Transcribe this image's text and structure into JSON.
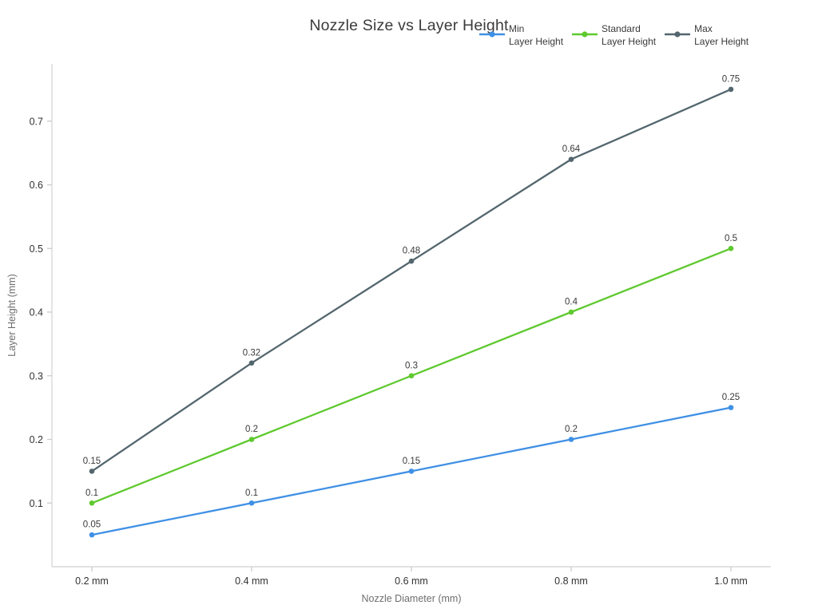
{
  "chart_data": {
    "type": "line",
    "title": "Nozzle Size vs Layer Height",
    "xlabel": "Nozzle Diameter (mm)",
    "ylabel": "Layer Height (mm)",
    "x": [
      0.2,
      0.4,
      0.6,
      0.8,
      1.0
    ],
    "x_tick_labels": [
      "0.2 mm",
      "0.4 mm",
      "0.6 mm",
      "0.8 mm",
      "1.0 mm"
    ],
    "y_ticks": [
      0.1,
      0.2,
      0.3,
      0.4,
      0.5,
      0.6,
      0.7
    ],
    "y_tick_labels": [
      "0.1",
      "0.2",
      "0.3",
      "0.4",
      "0.5",
      "0.6",
      "0.7"
    ],
    "xlim": [
      0.15,
      1.05
    ],
    "ylim": [
      0,
      0.79
    ],
    "grid": false,
    "legend_position": "top-right",
    "point_labels_shown": true,
    "series": [
      {
        "name": "Min Layer Height",
        "legend_lines": [
          "Min",
          "Layer Height"
        ],
        "color": "#3f90e5",
        "values": [
          0.05,
          0.1,
          0.15,
          0.2,
          0.25
        ],
        "point_labels": [
          "0.05",
          "0.1",
          "0.15",
          "0.2",
          "0.25"
        ]
      },
      {
        "name": "Standard Layer Height",
        "legend_lines": [
          "Standard",
          "Layer Height"
        ],
        "color": "#5fc92f",
        "values": [
          0.1,
          0.2,
          0.3,
          0.4,
          0.5
        ],
        "point_labels": [
          "0.1",
          "0.2",
          "0.3",
          "0.4",
          "0.5"
        ]
      },
      {
        "name": "Max Layer Height",
        "legend_lines": [
          "Max",
          "Layer Height"
        ],
        "color": "#53666e",
        "values": [
          0.15,
          0.32,
          0.48,
          0.64,
          0.75
        ],
        "point_labels": [
          "0.15",
          "0.32",
          "0.48",
          "0.64",
          "0.75"
        ]
      }
    ],
    "colors": {
      "background": "#ffffff",
      "axis_line": "#d9d9d9",
      "tick": "#cccccc",
      "tick_label": "#333333",
      "axis_title": "#6e6e6e",
      "point_label": "#3a3a3a",
      "title": "#3b3b3b"
    }
  }
}
